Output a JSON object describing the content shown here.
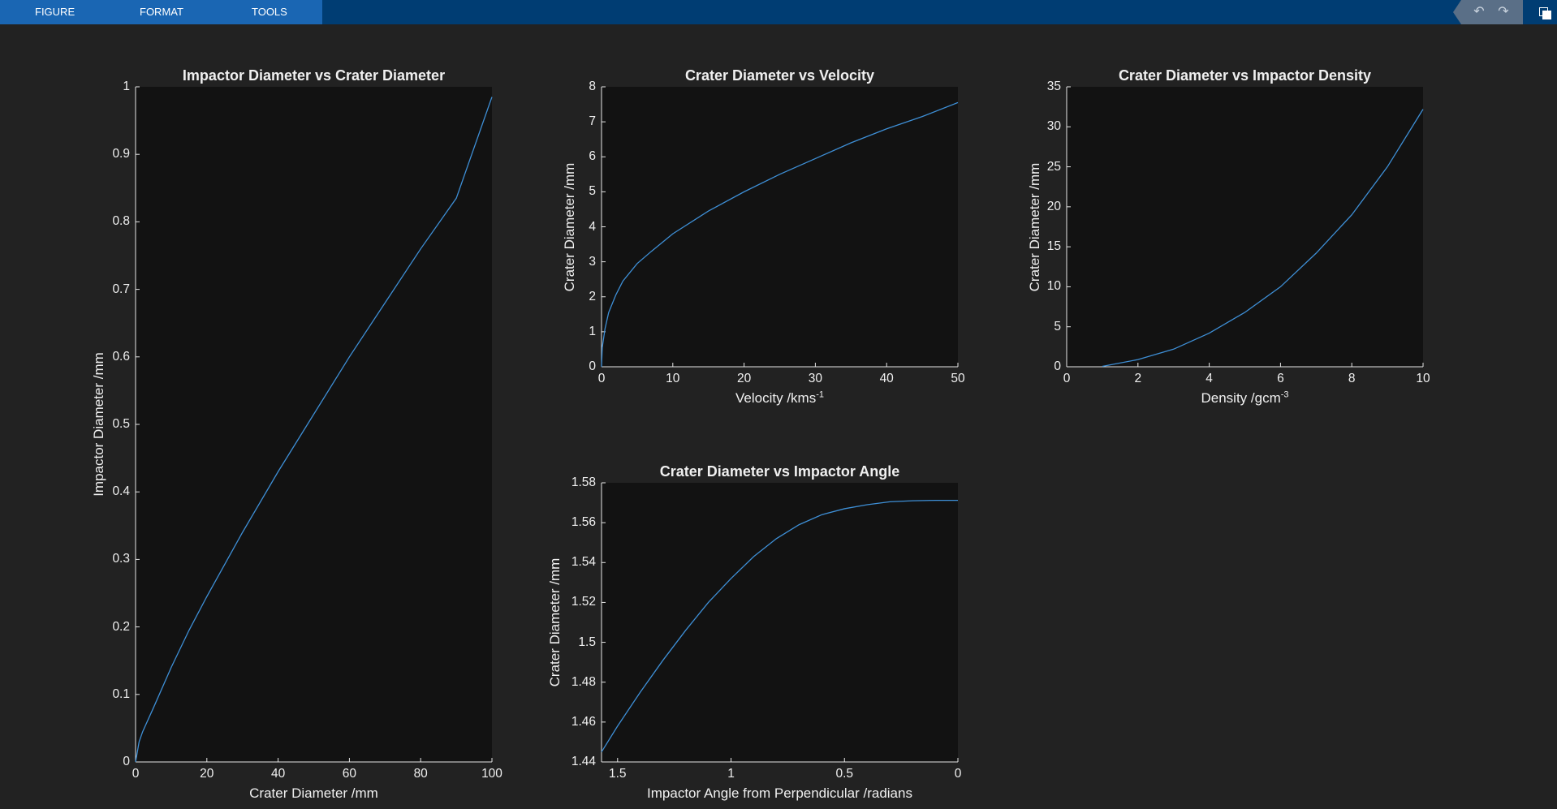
{
  "toolstrip": {
    "tabs": [
      {
        "label": "FIGURE"
      },
      {
        "label": "FORMAT"
      },
      {
        "label": "TOOLS"
      }
    ]
  },
  "colors": {
    "figure_bg": "#222222",
    "axes_bg": "#121212",
    "line": "#3e8fd6",
    "text": "#f0f0f0",
    "ribbon": "#003d73",
    "tab_strip": "#1a66b3"
  },
  "chart_data": [
    {
      "type": "line",
      "title": "Impactor Diameter vs Crater Diameter",
      "xlabel": "Crater Diameter /mm",
      "ylabel": "Impactor Diameter /mm",
      "xlim": [
        0,
        100
      ],
      "ylim": [
        0,
        1
      ],
      "xticks": [
        0,
        20,
        40,
        60,
        80,
        100
      ],
      "xticklabels": [
        "0",
        "20",
        "40",
        "60",
        "80",
        "100"
      ],
      "yticks": [
        0,
        0.1,
        0.2,
        0.3,
        0.4,
        0.5,
        0.6,
        0.7,
        0.8,
        0.9,
        1
      ],
      "yticklabels": [
        "0",
        "0.1",
        "0.2",
        "0.3",
        "0.4",
        "0.5",
        "0.6",
        "0.7",
        "0.8",
        "0.9",
        "1"
      ],
      "x_dir": "normal",
      "series": [
        {
          "x": [
            0,
            1,
            2,
            5,
            10,
            15,
            20,
            30,
            40,
            50,
            60,
            70,
            80,
            90,
            100
          ],
          "y": [
            0,
            0.03,
            0.045,
            0.08,
            0.14,
            0.195,
            0.245,
            0.34,
            0.43,
            0.515,
            0.6,
            0.68,
            0.76,
            0.835,
            0.985
          ]
        }
      ]
    },
    {
      "type": "line",
      "title": "Crater Diameter vs Velocity",
      "xlabel": "Velocity  /kms",
      "xlabel_sup": "-1",
      "ylabel": "Crater Diameter /mm",
      "xlim": [
        0,
        50
      ],
      "ylim": [
        0,
        8
      ],
      "xticks": [
        0,
        10,
        20,
        30,
        40,
        50
      ],
      "xticklabels": [
        "0",
        "10",
        "20",
        "30",
        "40",
        "50"
      ],
      "yticks": [
        0,
        1,
        2,
        3,
        4,
        5,
        6,
        7,
        8
      ],
      "yticklabels": [
        "0",
        "1",
        "2",
        "3",
        "4",
        "5",
        "6",
        "7",
        "8"
      ],
      "x_dir": "normal",
      "series": [
        {
          "x": [
            0,
            0.1,
            0.5,
            1,
            2,
            3,
            5,
            7,
            10,
            15,
            20,
            25,
            30,
            35,
            40,
            45,
            50
          ],
          "y": [
            0,
            0.55,
            1.1,
            1.55,
            2.05,
            2.45,
            2.95,
            3.3,
            3.8,
            4.45,
            5.0,
            5.5,
            5.95,
            6.4,
            6.8,
            7.15,
            7.55
          ]
        }
      ]
    },
    {
      "type": "line",
      "title": "Crater Diameter vs Impactor Density",
      "xlabel": "Density  /gcm",
      "xlabel_sup": "-3",
      "ylabel": "Crater Diameter /mm",
      "xlim": [
        0,
        10
      ],
      "ylim": [
        0,
        35
      ],
      "xticks": [
        0,
        2,
        4,
        6,
        8,
        10
      ],
      "xticklabels": [
        "0",
        "2",
        "4",
        "6",
        "8",
        "10"
      ],
      "yticks": [
        0,
        5,
        10,
        15,
        20,
        25,
        30,
        35
      ],
      "yticklabels": [
        "0",
        "5",
        "10",
        "15",
        "20",
        "25",
        "30",
        "35"
      ],
      "x_dir": "normal",
      "series": [
        {
          "x": [
            1,
            2,
            3,
            4,
            5,
            6,
            7,
            8,
            9,
            10
          ],
          "y": [
            0.05,
            0.9,
            2.2,
            4.2,
            6.8,
            10.0,
            14.2,
            19.0,
            25.0,
            32.2
          ]
        }
      ]
    },
    {
      "type": "line",
      "title": "Crater Diameter vs Impactor Angle",
      "xlabel": "Impactor Angle from Perpendicular /radians",
      "ylabel": "Crater Diameter /mm",
      "xlim": [
        0,
        1.5708
      ],
      "ylim": [
        1.44,
        1.58
      ],
      "xticks": [
        1.5,
        1,
        0.5,
        0
      ],
      "xticklabels": [
        "1.5",
        "1",
        "0.5",
        "0"
      ],
      "yticks": [
        1.44,
        1.46,
        1.48,
        1.5,
        1.52,
        1.54,
        1.56,
        1.58
      ],
      "yticklabels": [
        "1.44",
        "1.46",
        "1.48",
        "1.5",
        "1.52",
        "1.54",
        "1.56",
        "1.58"
      ],
      "x_dir": "reverse",
      "series": [
        {
          "x": [
            1.5708,
            1.5,
            1.4,
            1.3,
            1.2,
            1.1,
            1.0,
            0.9,
            0.8,
            0.7,
            0.6,
            0.5,
            0.4,
            0.3,
            0.2,
            0.1,
            0
          ],
          "y": [
            1.445,
            1.458,
            1.475,
            1.491,
            1.506,
            1.52,
            1.532,
            1.543,
            1.552,
            1.559,
            1.564,
            1.567,
            1.569,
            1.5705,
            1.571,
            1.5712,
            1.5712
          ]
        }
      ]
    }
  ]
}
